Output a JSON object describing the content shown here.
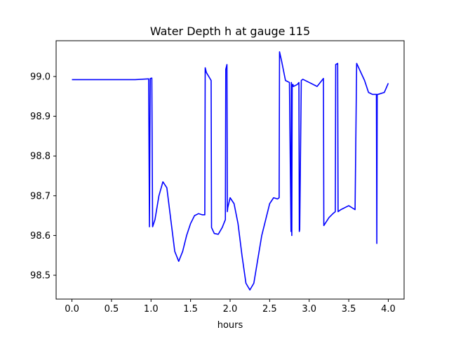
{
  "chart_data": {
    "type": "line",
    "title": "Water Depth h at gauge 115",
    "xlabel": "hours",
    "ylabel": "",
    "xlim": [
      -0.2,
      4.2
    ],
    "ylim": [
      98.44,
      99.09
    ],
    "xticks": [
      0.0,
      0.5,
      1.0,
      1.5,
      2.0,
      2.5,
      3.0,
      3.5,
      4.0
    ],
    "xtick_labels": [
      "0.0",
      "0.5",
      "1.0",
      "1.5",
      "2.0",
      "2.5",
      "3.0",
      "3.5",
      "4.0"
    ],
    "yticks": [
      98.5,
      98.6,
      98.7,
      98.8,
      98.9,
      99.0
    ],
    "ytick_labels": [
      "98.5",
      "98.6",
      "98.7",
      "98.8",
      "98.9",
      "99.0"
    ],
    "grid": false,
    "series": [
      {
        "color": "#0000ff",
        "x": [
          0.0,
          0.8,
          0.97,
          0.98,
          0.99,
          1.01,
          1.02,
          1.05,
          1.1,
          1.15,
          1.2,
          1.25,
          1.3,
          1.35,
          1.4,
          1.45,
          1.5,
          1.55,
          1.6,
          1.65,
          1.68,
          1.685,
          1.7,
          1.76,
          1.765,
          1.8,
          1.85,
          1.9,
          1.94,
          1.945,
          1.96,
          1.965,
          1.97,
          2.0,
          2.05,
          2.1,
          2.15,
          2.2,
          2.25,
          2.3,
          2.35,
          2.4,
          2.45,
          2.5,
          2.55,
          2.6,
          2.62,
          2.625,
          2.65,
          2.7,
          2.75,
          2.77,
          2.775,
          2.78,
          2.785,
          2.79,
          2.795,
          2.8,
          2.85,
          2.87,
          2.875,
          2.88,
          2.9,
          2.92,
          3.0,
          3.1,
          3.18,
          3.185,
          3.25,
          3.3,
          3.33,
          3.335,
          3.36,
          3.365,
          3.4,
          3.5,
          3.58,
          3.6,
          3.7,
          3.75,
          3.8,
          3.85,
          3.855,
          3.86,
          3.87,
          3.95,
          4.0
        ],
        "y": [
          98.992,
          98.992,
          98.994,
          98.622,
          98.995,
          98.996,
          98.622,
          98.64,
          98.7,
          98.735,
          98.72,
          98.64,
          98.56,
          98.535,
          98.56,
          98.6,
          98.63,
          98.65,
          98.655,
          98.652,
          98.652,
          99.022,
          99.01,
          98.99,
          98.62,
          98.605,
          98.603,
          98.62,
          98.64,
          99.018,
          99.03,
          98.66,
          98.67,
          98.695,
          98.68,
          98.63,
          98.55,
          98.48,
          98.463,
          98.48,
          98.54,
          98.6,
          98.64,
          98.68,
          98.695,
          98.692,
          98.695,
          99.062,
          99.04,
          98.99,
          98.985,
          98.61,
          98.985,
          98.6,
          98.98,
          98.975,
          98.98,
          98.975,
          98.98,
          98.985,
          98.61,
          98.615,
          98.99,
          98.993,
          98.985,
          98.975,
          98.995,
          98.625,
          98.645,
          98.655,
          98.66,
          99.03,
          99.033,
          98.66,
          98.665,
          98.675,
          98.665,
          99.033,
          98.99,
          98.96,
          98.955,
          98.955,
          98.58,
          98.955,
          98.955,
          98.96,
          98.983
        ]
      }
    ]
  }
}
